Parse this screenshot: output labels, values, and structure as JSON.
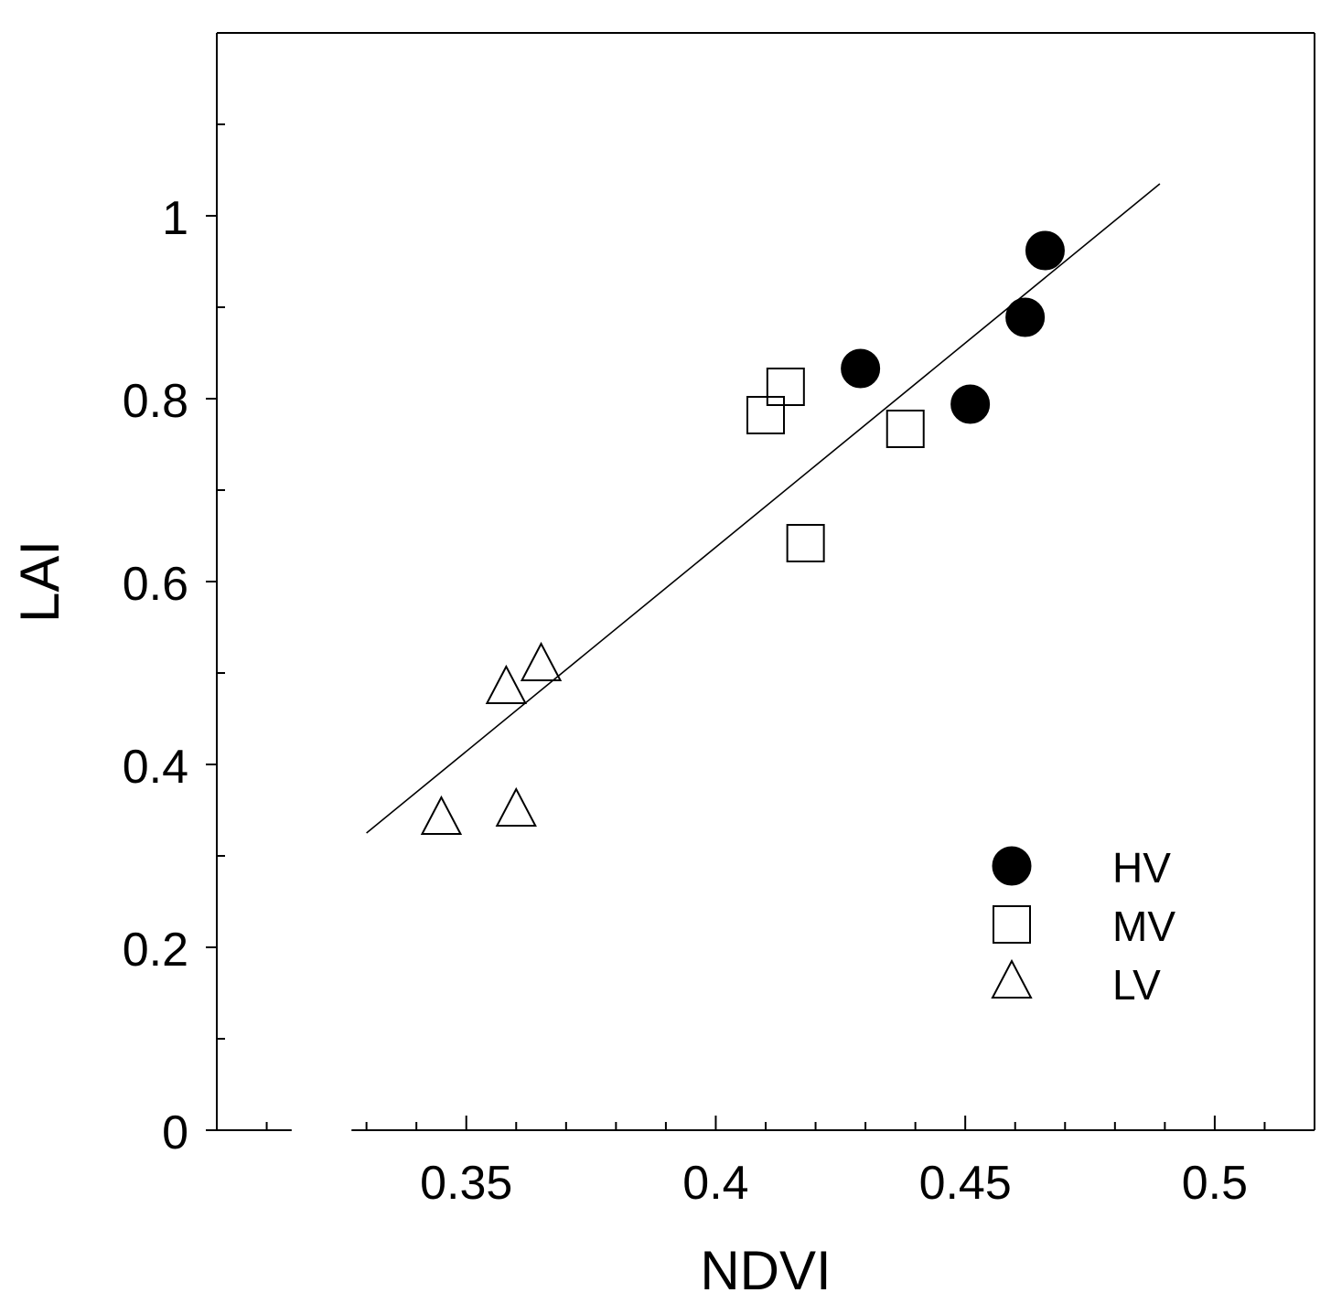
{
  "chart_data": {
    "type": "scatter",
    "title": "",
    "xlabel": "NDVI",
    "ylabel": "LAI",
    "xlim": [
      0.3,
      0.52
    ],
    "ylim": [
      0,
      1.2
    ],
    "xticks": [
      0.35,
      0.4,
      0.45,
      0.5
    ],
    "xtick_labels": [
      "0.35",
      "0.4",
      "0.45",
      "0.5"
    ],
    "yticks": [
      0,
      0.2,
      0.4,
      0.6,
      0.8,
      1.0
    ],
    "ytick_labels": [
      "0",
      "0.2",
      "0.4",
      "0.6",
      "0.8",
      "1"
    ],
    "grid": false,
    "legend_position": "bottom-right",
    "series": [
      {
        "name": "HV",
        "marker": "filled-circle",
        "color": "#000000",
        "points": [
          [
            0.429,
            0.833
          ],
          [
            0.451,
            0.794
          ],
          [
            0.462,
            0.889
          ],
          [
            0.466,
            0.962
          ]
        ]
      },
      {
        "name": "MV",
        "marker": "open-square",
        "color": "#000000",
        "points": [
          [
            0.41,
            0.782
          ],
          [
            0.414,
            0.813
          ],
          [
            0.418,
            0.642
          ],
          [
            0.438,
            0.767
          ]
        ]
      },
      {
        "name": "LV",
        "marker": "open-triangle",
        "color": "#000000",
        "points": [
          [
            0.345,
            0.34
          ],
          [
            0.358,
            0.483
          ],
          [
            0.36,
            0.349
          ],
          [
            0.365,
            0.508
          ]
        ]
      }
    ],
    "fit_line": {
      "x": [
        0.33,
        0.489
      ],
      "y": [
        0.325,
        1.035
      ]
    }
  }
}
